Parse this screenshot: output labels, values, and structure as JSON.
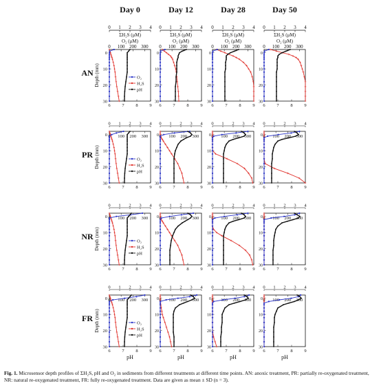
{
  "figure": {
    "caption_label": "Fig. 1.",
    "caption_text": "Microsensor depth profiles of ΣH₂S, pH and O₂ in sediments from different treatments at different time points. AN: anoxic treatment, PR: partially re-oxygenated treatment, NR: natural re-oxygenated treatment, FR: fully re-oxygenated treatment. Data are given as mean ± SD (n = 3).",
    "colors": {
      "O2": "#2b35c8",
      "H2S": "#e0302a",
      "pH": "#111111"
    }
  },
  "chart_data": {
    "type": "line",
    "columns": [
      "Day 0",
      "Day 12",
      "Day 28",
      "Day 50"
    ],
    "rows": [
      "AN",
      "PR",
      "NR",
      "FR"
    ],
    "axes": {
      "h2s_label": "ΣH₂S (μM)",
      "h2s_range": [
        0,
        4
      ],
      "h2s_ticks": [
        0,
        1,
        2,
        3,
        4
      ],
      "o2_label": "O₂ (μM)",
      "o2_range": [
        0,
        350
      ],
      "o2_ticks": [
        0,
        100,
        200,
        300
      ],
      "ph_label": "pH",
      "ph_range": [
        6,
        9
      ],
      "ph_ticks": [
        6,
        7,
        8,
        9
      ],
      "depth_label": "Depth (mm)",
      "depth_range": [
        -2,
        30
      ],
      "depth_ticks": [
        0,
        10,
        20,
        30
      ]
    },
    "legend": [
      "O₂",
      "H₂S",
      "pH"
    ],
    "depth": [
      -2,
      -1,
      0,
      1,
      2,
      3,
      4,
      6,
      8,
      10,
      12,
      15,
      18,
      21,
      24,
      27,
      30
    ],
    "panels": [
      {
        "row": "AN",
        "col": "Day 0",
        "O2": [
          40,
          4,
          0,
          0,
          0,
          0,
          0,
          0,
          0,
          0,
          0,
          0,
          0,
          0,
          0,
          0,
          0
        ],
        "H2S": [
          0,
          0.05,
          0.1,
          0.15,
          0.2,
          0.25,
          0.3,
          0.38,
          0.45,
          0.5,
          0.55,
          0.6,
          0.66,
          0.72,
          0.8,
          0.88,
          0.95
        ],
        "pH": [
          7.5,
          7.4,
          7.3,
          7.3,
          7.3,
          7.3,
          7.3,
          7.3,
          7.3,
          7.3,
          7.3,
          7.25,
          7.2,
          7.15,
          7.12,
          7.1,
          7.1
        ]
      },
      {
        "row": "AN",
        "col": "Day 12",
        "O2": [
          40,
          4,
          0,
          0,
          0,
          0,
          0,
          0,
          0,
          0,
          0,
          0,
          0,
          0,
          0,
          0,
          0
        ],
        "H2S": [
          0.2,
          0.4,
          0.6,
          0.8,
          1.0,
          1.1,
          1.2,
          1.3,
          1.4,
          1.5,
          1.55,
          1.6,
          1.65,
          1.7,
          1.75,
          1.78,
          1.8
        ],
        "pH": [
          7.9,
          7.6,
          7.4,
          7.35,
          7.3,
          7.3,
          7.25,
          7.2,
          7.2,
          7.2,
          7.2,
          7.15,
          7.15,
          7.1,
          7.1,
          7.1,
          7.1
        ]
      },
      {
        "row": "AN",
        "col": "Day 28",
        "O2": [
          40,
          4,
          0,
          0,
          0,
          0,
          0,
          0,
          0,
          0,
          0,
          0,
          0,
          0,
          0,
          0,
          0
        ],
        "H2S": [
          0.4,
          0.8,
          1.2,
          1.6,
          2.0,
          2.3,
          2.6,
          3.0,
          3.3,
          3.5,
          3.7,
          3.85,
          3.95,
          4.0,
          4.0,
          4.0,
          4.0
        ],
        "pH": [
          7.9,
          7.6,
          7.3,
          7.1,
          7.0,
          7.0,
          7.0,
          6.95,
          6.95,
          6.95,
          6.9,
          6.9,
          6.9,
          6.9,
          6.9,
          6.9,
          6.9
        ]
      },
      {
        "row": "AN",
        "col": "Day 50",
        "O2": [
          40,
          4,
          0,
          0,
          0,
          0,
          0,
          0,
          0,
          0,
          0,
          0,
          0,
          0,
          0,
          0,
          0
        ],
        "H2S": [
          0.6,
          1.2,
          1.8,
          2.4,
          2.8,
          3.1,
          3.3,
          3.5,
          3.6,
          3.7,
          3.8,
          3.9,
          4.0,
          4.0,
          4.0,
          4.0,
          4.0
        ],
        "pH": [
          7.9,
          7.6,
          7.3,
          7.1,
          7.0,
          7.0,
          6.95,
          6.95,
          6.95,
          6.95,
          6.9,
          6.9,
          6.9,
          6.9,
          6.9,
          6.9,
          6.9
        ]
      },
      {
        "row": "PR",
        "col": "Day 0",
        "O2": [
          120,
          60,
          20,
          0,
          0,
          0,
          0,
          0,
          0,
          0,
          0,
          0,
          0,
          0,
          0,
          0,
          0
        ],
        "H2S": [
          0,
          0.05,
          0.1,
          0.15,
          0.2,
          0.25,
          0.3,
          0.38,
          0.45,
          0.5,
          0.55,
          0.6,
          0.66,
          0.72,
          0.8,
          0.88,
          0.95
        ],
        "pH": [
          7.5,
          7.4,
          7.3,
          7.3,
          7.3,
          7.3,
          7.3,
          7.3,
          7.3,
          7.3,
          7.3,
          7.25,
          7.2,
          7.15,
          7.12,
          7.1,
          7.1
        ]
      },
      {
        "row": "PR",
        "col": "Day 12",
        "O2": [
          250,
          120,
          30,
          0,
          0,
          0,
          0,
          0,
          0,
          0,
          0,
          0,
          0,
          0,
          0,
          0,
          0
        ],
        "H2S": [
          0,
          0,
          0,
          0.05,
          0.1,
          0.2,
          0.3,
          0.5,
          0.7,
          0.9,
          1.1,
          1.4,
          1.7,
          1.9,
          2.1,
          2.2,
          2.3
        ],
        "pH": [
          8.0,
          8.2,
          8.3,
          8.2,
          7.9,
          7.7,
          7.5,
          7.3,
          7.2,
          7.1,
          7.05,
          7.0,
          7.0,
          7.0,
          7.0,
          7.0,
          7.0
        ]
      },
      {
        "row": "PR",
        "col": "Day 28",
        "O2": [
          300,
          200,
          80,
          10,
          0,
          0,
          0,
          0,
          0,
          0,
          0,
          0,
          0,
          0,
          0,
          0,
          0
        ],
        "H2S": [
          0,
          0,
          0,
          0,
          0,
          0,
          0,
          0,
          0,
          0.02,
          0.3,
          1.4,
          2.4,
          3.1,
          3.5,
          3.8,
          3.9
        ],
        "pH": [
          8.1,
          8.3,
          8.4,
          8.3,
          7.9,
          7.5,
          7.2,
          7.0,
          6.9,
          6.85,
          6.8,
          6.8,
          6.8,
          6.8,
          6.8,
          6.8,
          6.8
        ]
      },
      {
        "row": "PR",
        "col": "Day 50",
        "O2": [
          300,
          230,
          120,
          30,
          0,
          0,
          0,
          0,
          0,
          0,
          0,
          0,
          0,
          0,
          0,
          0,
          0
        ],
        "H2S": [
          0,
          0,
          0,
          0,
          0,
          0,
          0,
          0,
          0,
          0,
          0,
          0,
          0.1,
          1.0,
          2.3,
          3.4,
          4.0
        ],
        "pH": [
          8.2,
          8.4,
          8.5,
          8.3,
          7.8,
          7.3,
          7.0,
          6.8,
          6.7,
          6.65,
          6.6,
          6.6,
          6.55,
          6.55,
          6.55,
          6.55,
          6.55
        ]
      },
      {
        "row": "NR",
        "col": "Day 0",
        "O2": [
          280,
          180,
          60,
          0,
          0,
          0,
          0,
          0,
          0,
          0,
          0,
          0,
          0,
          0,
          0,
          0,
          0
        ],
        "H2S": [
          0,
          0.05,
          0.1,
          0.15,
          0.2,
          0.25,
          0.3,
          0.38,
          0.45,
          0.5,
          0.55,
          0.6,
          0.66,
          0.72,
          0.8,
          0.88,
          0.95
        ],
        "pH": [
          7.6,
          7.5,
          7.4,
          7.3,
          7.3,
          7.3,
          7.3,
          7.3,
          7.3,
          7.3,
          7.3,
          7.25,
          7.2,
          7.15,
          7.12,
          7.1,
          7.1
        ]
      },
      {
        "row": "NR",
        "col": "Day 12",
        "O2": [
          280,
          180,
          80,
          10,
          0,
          0,
          0,
          0,
          0,
          0,
          0,
          0,
          0,
          0,
          0,
          0,
          0
        ],
        "H2S": [
          0,
          0,
          0,
          0.05,
          0.1,
          0.2,
          0.3,
          0.5,
          0.7,
          0.9,
          1.1,
          1.4,
          1.7,
          1.9,
          2.1,
          2.2,
          2.3
        ],
        "pH": [
          8.0,
          8.2,
          8.3,
          8.2,
          8.0,
          7.8,
          7.6,
          7.3,
          7.1,
          7.0,
          6.9,
          6.8,
          6.75,
          6.7,
          6.7,
          6.7,
          6.7
        ]
      },
      {
        "row": "NR",
        "col": "Day 28",
        "O2": [
          300,
          210,
          100,
          20,
          0,
          0,
          0,
          0,
          0,
          0,
          0,
          0,
          0,
          0,
          0,
          0,
          0
        ],
        "H2S": [
          0,
          0,
          0,
          0,
          0,
          0,
          0,
          0,
          0.1,
          0.4,
          0.9,
          1.8,
          2.6,
          3.2,
          3.6,
          3.8,
          3.9
        ],
        "pH": [
          8.1,
          8.3,
          8.4,
          8.3,
          7.9,
          7.5,
          7.2,
          7.0,
          6.9,
          6.85,
          6.8,
          6.8,
          6.8,
          6.8,
          6.8,
          6.8,
          6.8
        ]
      },
      {
        "row": "NR",
        "col": "Day 50",
        "O2": [
          300,
          260,
          170,
          60,
          0,
          0,
          0,
          0,
          0,
          0,
          0,
          0,
          0,
          0,
          0,
          0,
          0
        ],
        "H2S": [
          0,
          0,
          0,
          0,
          0,
          0,
          0,
          0,
          0,
          0,
          0,
          0,
          0,
          0,
          0,
          0,
          0
        ],
        "pH": [
          8.2,
          8.4,
          8.6,
          8.5,
          8.1,
          7.7,
          7.3,
          7.0,
          6.85,
          6.8,
          6.75,
          6.7,
          6.7,
          6.65,
          6.65,
          6.65,
          6.65
        ]
      },
      {
        "row": "FR",
        "col": "Day 0",
        "O2": [
          300,
          230,
          130,
          30,
          0,
          0,
          0,
          0,
          0,
          0,
          0,
          0,
          0,
          0,
          0,
          0,
          0
        ],
        "H2S": [
          0,
          0.05,
          0.1,
          0.15,
          0.2,
          0.25,
          0.3,
          0.38,
          0.45,
          0.5,
          0.55,
          0.6,
          0.66,
          0.72,
          0.8,
          0.88,
          0.95
        ],
        "pH": [
          7.6,
          7.5,
          7.4,
          7.3,
          7.3,
          7.3,
          7.3,
          7.3,
          7.3,
          7.3,
          7.3,
          7.25,
          7.2,
          7.15,
          7.12,
          7.1,
          7.1
        ]
      },
      {
        "row": "FR",
        "col": "Day 12",
        "O2": [
          310,
          250,
          150,
          50,
          0,
          0,
          0,
          0,
          0,
          0,
          0,
          0,
          0,
          0,
          0,
          0,
          0
        ],
        "H2S": [
          0,
          0,
          0,
          0,
          0,
          0.02,
          0.05,
          0.1,
          0.15,
          0.2,
          0.3,
          0.45,
          0.6,
          0.75,
          0.9,
          1.0,
          1.1
        ],
        "pH": [
          8.2,
          8.4,
          8.5,
          8.3,
          8.0,
          7.7,
          7.4,
          7.1,
          7.0,
          6.95,
          6.95,
          6.95,
          6.95,
          6.95,
          7.0,
          7.0,
          7.0
        ]
      },
      {
        "row": "FR",
        "col": "Day 28",
        "O2": [
          310,
          270,
          190,
          90,
          10,
          0,
          0,
          0,
          0,
          0,
          0,
          0,
          0,
          0,
          0,
          0,
          0
        ],
        "H2S": [
          0,
          0,
          0,
          0,
          0,
          0,
          0,
          0,
          0,
          0,
          0,
          0,
          0,
          0.02,
          0.1,
          0.25,
          0.4
        ],
        "pH": [
          8.3,
          8.5,
          8.6,
          8.4,
          8.0,
          7.6,
          7.2,
          6.9,
          6.8,
          6.7,
          6.7,
          6.7,
          6.65,
          6.65,
          6.6,
          6.6,
          6.6
        ]
      },
      {
        "row": "FR",
        "col": "Day 50",
        "O2": [
          310,
          290,
          230,
          130,
          40,
          0,
          0,
          0,
          0,
          0,
          0,
          0,
          0,
          0,
          0,
          0,
          0
        ],
        "H2S": [
          0,
          0,
          0,
          0,
          0,
          0,
          0,
          0,
          0,
          0,
          0,
          0,
          0,
          0,
          0,
          0,
          0
        ],
        "pH": [
          8.4,
          8.6,
          8.7,
          8.5,
          8.2,
          7.8,
          7.4,
          7.0,
          6.9,
          6.8,
          6.75,
          6.75,
          6.7,
          6.7,
          6.7,
          6.7,
          6.7
        ]
      }
    ]
  }
}
